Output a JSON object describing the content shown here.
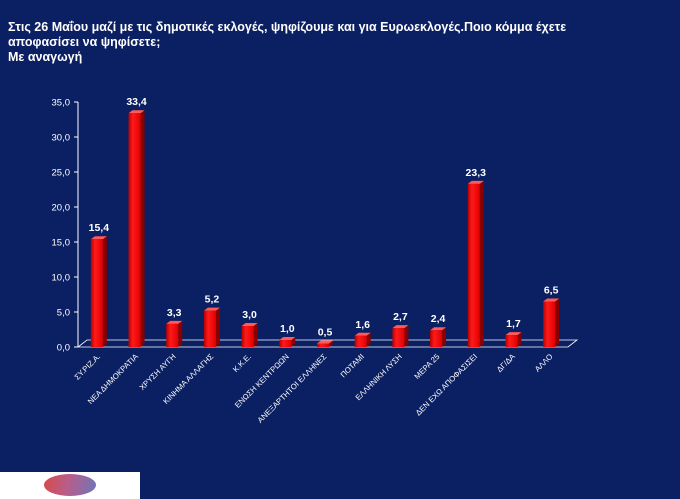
{
  "chart_data": {
    "type": "bar",
    "title_lines": [
      "Στις 26 Μαΐου μαζί με τις δημοτικές εκλογές, ψηφίζουμε και για Ευρωεκλογές.Ποιο κόμμα έχετε",
      "αποφασίσει να ψηφίσετε;",
      "Με αναγωγή"
    ],
    "categories": [
      "ΣΥ.ΡΙΖ.Α.",
      "ΝΕΑ ΔΗΜΟΚΡΑΤΙΑ",
      "ΧΡΥΣΗ ΑΥΓΗ",
      "ΚΙΝΗΜΑ ΑΛΛΑΓΗΣ",
      "Κ.Κ.Ε.",
      "ΕΝΩΣΗ ΚΕΝΤΡΩΩΝ",
      "ΑΝΕΞΑΡΤΗΤΟΙ ΕΛΛΗΝΕΣ",
      "ΠΟΤΑΜΙ",
      "ΕΛΛΗΝΙΚΗ ΛΥΣΗ",
      "ΜΕΡΑ 25",
      "ΔΕΝ ΕΧΩ ΑΠΟΦΑΣΙΣΕΙ",
      "ΔΓ/ΔΑ",
      "ΑΛΛΟ"
    ],
    "values": [
      15.4,
      33.4,
      3.3,
      5.2,
      3.0,
      1.0,
      0.5,
      1.6,
      2.7,
      2.4,
      23.3,
      1.7,
      6.5
    ],
    "value_labels": [
      "15,4",
      "33,4",
      "3,3",
      "5,2",
      "3,0",
      "1,0",
      "0,5",
      "1,6",
      "2,7",
      "2,4",
      "23,3",
      "1,7",
      "6,5"
    ],
    "y_ticks": [
      "0,0",
      "5,0",
      "10,0",
      "15,0",
      "20,0",
      "25,0",
      "30,0",
      "35,0"
    ],
    "ylim": [
      0,
      35
    ],
    "grid": false,
    "legend": "none",
    "bar_color": "#ff0000",
    "background_color": "#0b1f63",
    "text_color": "#ffffff"
  }
}
